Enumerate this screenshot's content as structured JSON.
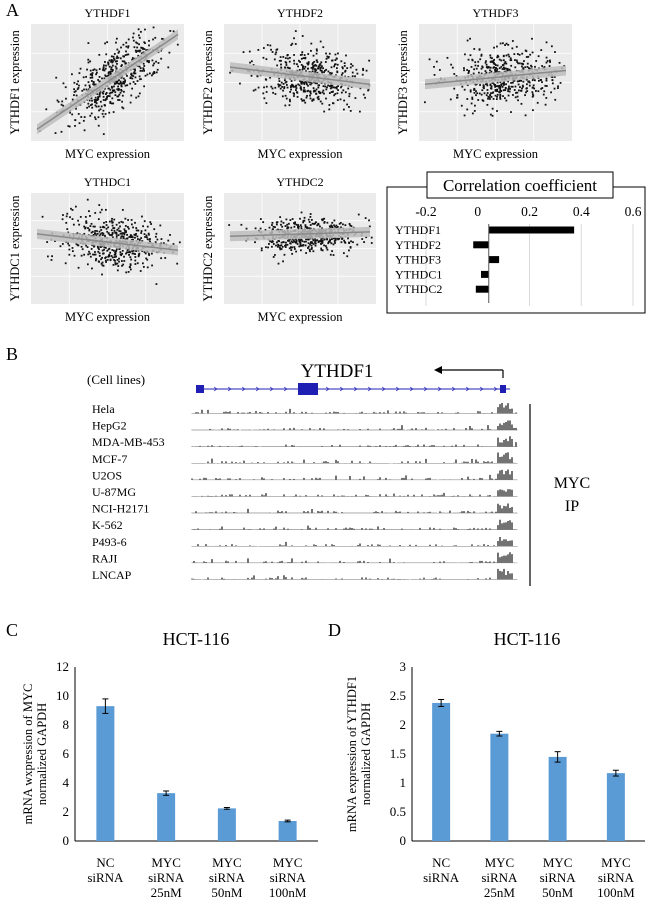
{
  "panel_labels": {
    "a": "A",
    "b": "B",
    "c": "C",
    "d": "D"
  },
  "scatter_panels": [
    {
      "title": "YTHDF1",
      "xlabel": "MYC expression",
      "ylabel": "YTHDF1 expression",
      "trend": "positive"
    },
    {
      "title": "YTHDF2",
      "xlabel": "MYC expression",
      "ylabel": "YTHDF2 expression",
      "trend": "slightly-negative"
    },
    {
      "title": "YTHDF3",
      "xlabel": "MYC expression",
      "ylabel": "YTHDF3 expression",
      "trend": "slightly-positive"
    },
    {
      "title": "YTHDC1",
      "xlabel": "MYC expression",
      "ylabel": "YTHDC1 expression",
      "trend": "slightly-negative"
    },
    {
      "title": "YTHDC2",
      "xlabel": "MYC expression",
      "ylabel": "YTHDC2 expression",
      "trend": "slightly-negative"
    }
  ],
  "chart_data": [
    {
      "type": "bar",
      "orientation": "horizontal",
      "title": "Correlation coefficient",
      "categories": [
        "YTHDF1",
        "YTHDF2",
        "YTHDF3",
        "YTHDC1",
        "YTHDC2"
      ],
      "values": [
        0.33,
        -0.06,
        0.04,
        -0.03,
        -0.05
      ],
      "xlim": [
        -0.2,
        0.6
      ],
      "ticks": [
        "-0.2",
        "0",
        "0.2",
        "0.4",
        "0.6"
      ]
    },
    {
      "type": "bar",
      "title": "HCT-116",
      "ylabel": "mRNA wxpression of MYC normalized GAPDH",
      "ylabel_lines": [
        "mRNA wxpression of MYC",
        "normalized GAPDH"
      ],
      "categories": [
        [
          "NC",
          "siRNA"
        ],
        [
          "MYC",
          "siRNA",
          "25nM"
        ],
        [
          "MYC",
          "siRNA",
          "50nM"
        ],
        [
          "MYC",
          "siRNA",
          "100nM"
        ]
      ],
      "values": [
        9.3,
        3.3,
        2.25,
        1.38
      ],
      "errors": [
        0.5,
        0.15,
        0.06,
        0.06
      ],
      "ylim": [
        0,
        12
      ],
      "ticks": [
        "0",
        "2",
        "4",
        "6",
        "8",
        "10",
        "12"
      ],
      "color": "#5b9bd5"
    },
    {
      "type": "bar",
      "title": "HCT-116",
      "ylabel": "mRNA expression of YTHDF1 normalized GAPDH",
      "ylabel_lines": [
        "mRNA expression of YTHDF1",
        "normalized GAPDH"
      ],
      "categories": [
        [
          "NC",
          "siRNA"
        ],
        [
          "MYC",
          "siRNA",
          "25nM"
        ],
        [
          "MYC",
          "siRNA",
          "50nM"
        ],
        [
          "MYC",
          "siRNA",
          "100nM"
        ]
      ],
      "values": [
        2.38,
        1.85,
        1.45,
        1.17
      ],
      "errors": [
        0.06,
        0.04,
        0.09,
        0.05
      ],
      "ylim": [
        0,
        3
      ],
      "ticks": [
        "0",
        "0.5",
        "1",
        "1.5",
        "2",
        "2.5",
        "3"
      ],
      "color": "#5b9bd5"
    }
  ],
  "genome_track": {
    "gene": "YTHDF1",
    "cell_lines_header": "(Cell lines)",
    "cell_lines": [
      "Hela",
      "HepG2",
      "MDA-MB-453",
      "MCF-7",
      "U2OS",
      "U-87MG",
      "NCI-H2171",
      "K-562",
      "P493-6",
      "RAJI",
      "LNCAP"
    ],
    "ip_label_lines": [
      "MYC",
      "IP"
    ],
    "gene_color": "#1f1fb4"
  }
}
